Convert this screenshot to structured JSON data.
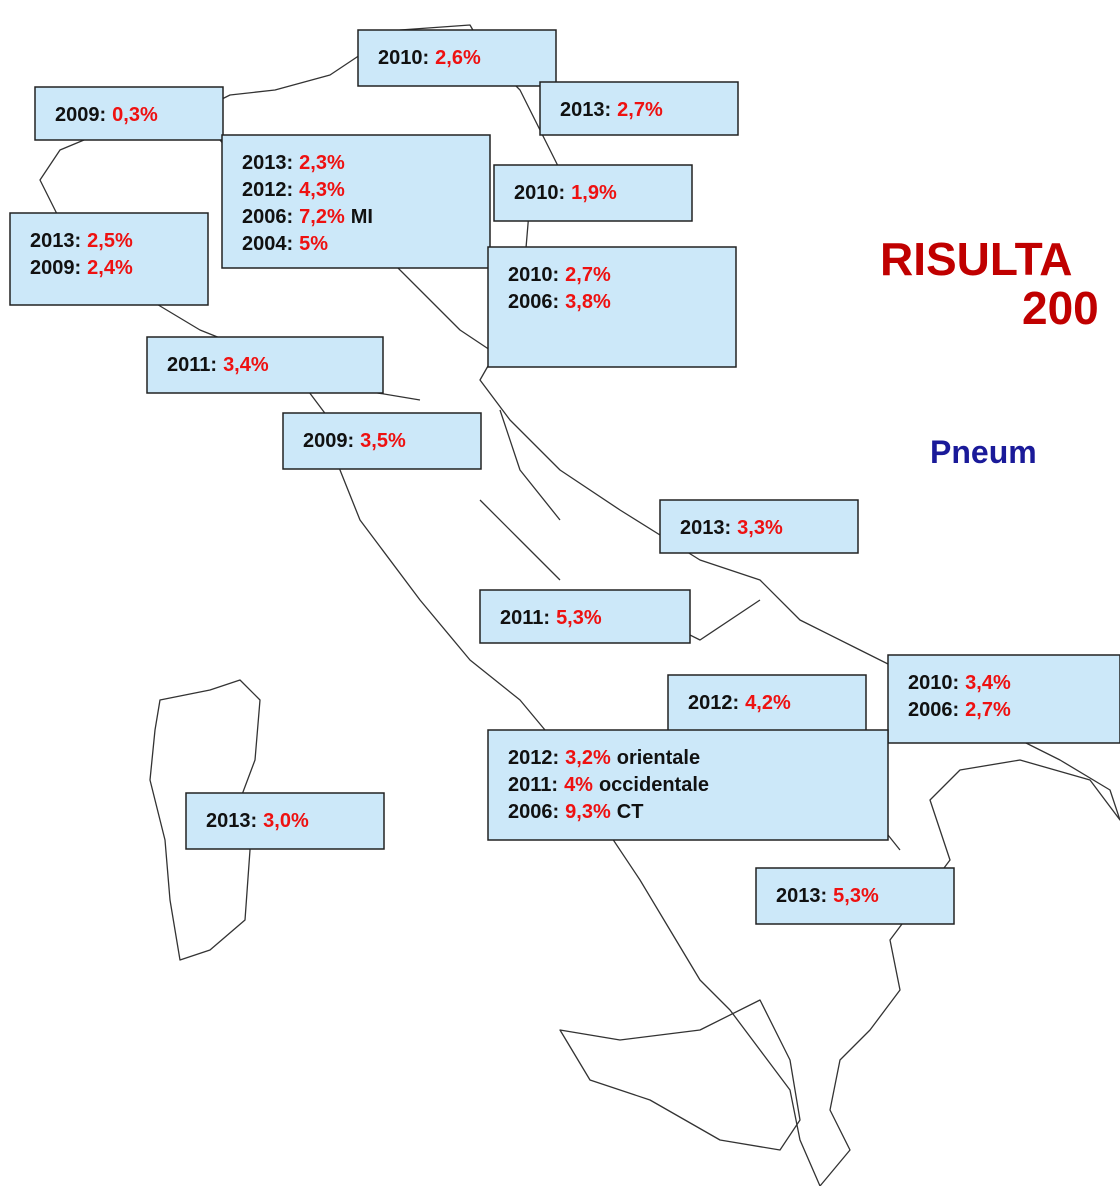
{
  "title": {
    "line1": "RISULTA",
    "line2": "200",
    "subtitle": "Pneum"
  },
  "boxes": [
    {
      "lines": [
        {
          "year": "2010:",
          "value": "2,6%"
        }
      ]
    },
    {
      "lines": [
        {
          "year": "2013:",
          "value": "2,7%"
        }
      ]
    },
    {
      "lines": [
        {
          "year": "2009:",
          "value": "0,3%"
        }
      ]
    },
    {
      "lines": [
        {
          "year": "2013:",
          "value": "2,3%"
        },
        {
          "year": "2012:",
          "value": "4,3%"
        },
        {
          "year": "2006:",
          "value": "7,2%",
          "note": "MI"
        },
        {
          "year": "2004:",
          "value": "5%"
        }
      ]
    },
    {
      "lines": [
        {
          "year": "2010:",
          "value": "1,9%"
        }
      ]
    },
    {
      "lines": [
        {
          "year": "2013:",
          "value": "2,5%"
        },
        {
          "year": "2009:",
          "value": "2,4%"
        }
      ]
    },
    {
      "lines": [
        {
          "year": "2010:",
          "value": "2,7%"
        },
        {
          "year": "2006:",
          "value": "3,8%"
        }
      ]
    },
    {
      "lines": [
        {
          "year": "2011:",
          "value": "3,4%"
        }
      ]
    },
    {
      "lines": [
        {
          "year": "2009:",
          "value": "3,5%"
        }
      ]
    },
    {
      "lines": [
        {
          "year": "2013:",
          "value": "3,3%"
        }
      ]
    },
    {
      "lines": [
        {
          "year": "2011:",
          "value": "5,3%"
        }
      ]
    },
    {
      "lines": [
        {
          "year": "2012:",
          "value": "4,2%"
        }
      ]
    },
    {
      "lines": [
        {
          "year": "2010:",
          "value": "3,4%"
        },
        {
          "year": "2006:",
          "value": "2,7%"
        }
      ]
    },
    {
      "lines": [
        {
          "year": "2013:",
          "value": "3,0%"
        }
      ]
    },
    {
      "lines": [
        {
          "year": "2013:",
          "value": "5,3%"
        }
      ]
    },
    {
      "lines": [
        {
          "year": "2012:",
          "value": "3,2%",
          "note": "orientale"
        },
        {
          "year": "2011:",
          "value": "4%",
          "note": "occidentale"
        },
        {
          "year": "2006:",
          "value": "9,3%",
          "note": "CT"
        }
      ]
    }
  ]
}
